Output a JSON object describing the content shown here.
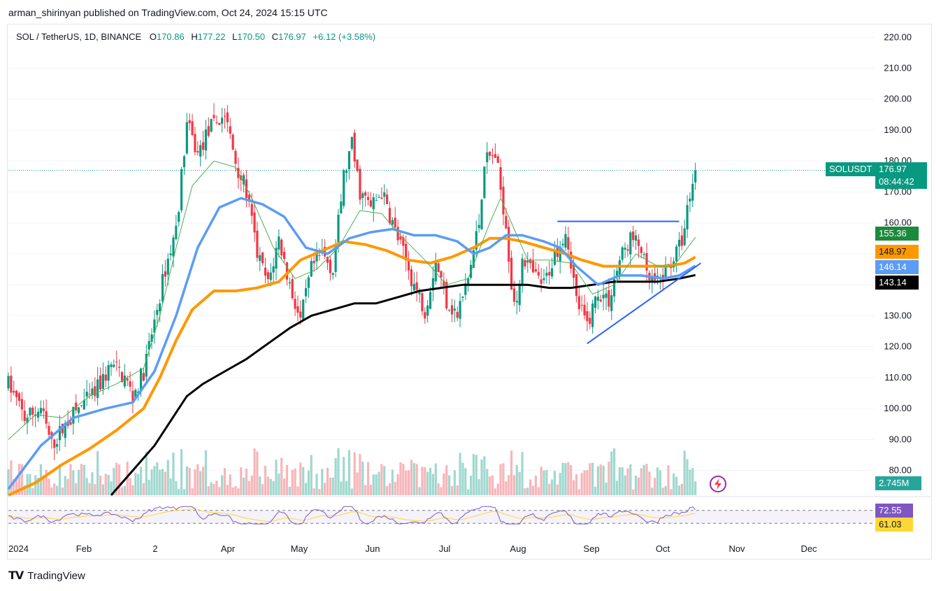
{
  "publisher": "arman_shirinyan published on TradingView.com, Oct 24, 2024 15:15 UTC",
  "legend": {
    "symbol": "SOL / TetherUS, 1D, BINANCE",
    "o_label": "O",
    "o": "170.86",
    "h_label": "H",
    "h": "177.22",
    "l_label": "L",
    "l": "170.50",
    "c_label": "C",
    "c": "176.97",
    "change": "+6.12 (+3.58%)"
  },
  "footer": {
    "brand": "TradingView"
  },
  "price_tags": {
    "ticker": "SOLUSDT",
    "last": "176.97",
    "countdown": "08:44:42",
    "ma_fast": "155.36",
    "ma_orange": "148.97",
    "ma_blue": "146.14",
    "ma_black": "143.14",
    "volume": "2.745M",
    "rsi": "72.55",
    "rsi_ma": "61.03"
  },
  "colors": {
    "up": "#089981",
    "down": "#f23645",
    "ma_fast": "#4caf50",
    "ma_orange": "#ff9800",
    "ma_blue": "#5b9cf6",
    "ma_black": "#000000",
    "trendline": "#2962ff",
    "rsi": "#7e57c2",
    "rsi_ma": "#fdd835",
    "last_price": "#089981"
  },
  "chart_data": {
    "type": "candlestick",
    "symbol": "SOL / TetherUS, 1D, BINANCE",
    "y_ticks": [
      "220.00",
      "210.00",
      "200.00",
      "190.00",
      "180.00",
      "170.00",
      "160.00",
      "150.00",
      "140.00",
      "130.00",
      "120.00",
      "110.00",
      "100.00",
      "90.00",
      "80.00"
    ],
    "x_ticks": [
      "2024",
      "Feb",
      "2",
      "Apr",
      "May",
      "Jun",
      "Jul",
      "Aug",
      "Sep",
      "Oct",
      "Nov",
      "Dec"
    ],
    "ylim": [
      72,
      223
    ],
    "price_path": [
      {
        "x": 0,
        "v": 108
      },
      {
        "x": 6,
        "v": 97
      },
      {
        "x": 12,
        "v": 100
      },
      {
        "x": 16,
        "v": 88
      },
      {
        "x": 22,
        "v": 96
      },
      {
        "x": 26,
        "v": 100
      },
      {
        "x": 32,
        "v": 105
      },
      {
        "x": 38,
        "v": 114
      },
      {
        "x": 43,
        "v": 110
      },
      {
        "x": 46,
        "v": 104
      },
      {
        "x": 50,
        "v": 112
      },
      {
        "x": 54,
        "v": 128
      },
      {
        "x": 58,
        "v": 145
      },
      {
        "x": 62,
        "v": 158
      },
      {
        "x": 66,
        "v": 192
      },
      {
        "x": 70,
        "v": 182
      },
      {
        "x": 74,
        "v": 190
      },
      {
        "x": 80,
        "v": 195
      },
      {
        "x": 84,
        "v": 180
      },
      {
        "x": 88,
        "v": 170
      },
      {
        "x": 92,
        "v": 150
      },
      {
        "x": 96,
        "v": 140
      },
      {
        "x": 100,
        "v": 155
      },
      {
        "x": 104,
        "v": 140
      },
      {
        "x": 108,
        "v": 128
      },
      {
        "x": 112,
        "v": 145
      },
      {
        "x": 116,
        "v": 150
      },
      {
        "x": 120,
        "v": 145
      },
      {
        "x": 124,
        "v": 175
      },
      {
        "x": 127,
        "v": 185
      },
      {
        "x": 130,
        "v": 170
      },
      {
        "x": 134,
        "v": 165
      },
      {
        "x": 138,
        "v": 170
      },
      {
        "x": 142,
        "v": 160
      },
      {
        "x": 146,
        "v": 150
      },
      {
        "x": 150,
        "v": 140
      },
      {
        "x": 154,
        "v": 132
      },
      {
        "x": 158,
        "v": 148
      },
      {
        "x": 162,
        "v": 135
      },
      {
        "x": 166,
        "v": 130
      },
      {
        "x": 170,
        "v": 142
      },
      {
        "x": 174,
        "v": 160
      },
      {
        "x": 176,
        "v": 180
      },
      {
        "x": 180,
        "v": 182
      },
      {
        "x": 184,
        "v": 160
      },
      {
        "x": 186,
        "v": 140
      },
      {
        "x": 188,
        "v": 132
      },
      {
        "x": 190,
        "v": 150
      },
      {
        "x": 194,
        "v": 143
      },
      {
        "x": 198,
        "v": 140
      },
      {
        "x": 202,
        "v": 150
      },
      {
        "x": 206,
        "v": 158
      },
      {
        "x": 208,
        "v": 148
      },
      {
        "x": 210,
        "v": 135
      },
      {
        "x": 214,
        "v": 127
      },
      {
        "x": 218,
        "v": 138
      },
      {
        "x": 222,
        "v": 135
      },
      {
        "x": 226,
        "v": 148
      },
      {
        "x": 230,
        "v": 155
      },
      {
        "x": 234,
        "v": 152
      },
      {
        "x": 236,
        "v": 142
      },
      {
        "x": 240,
        "v": 140
      },
      {
        "x": 244,
        "v": 146
      },
      {
        "x": 248,
        "v": 152
      },
      {
        "x": 250,
        "v": 158
      },
      {
        "x": 252,
        "v": 170
      },
      {
        "x": 254,
        "v": 177
      }
    ],
    "ma_fast": [
      [
        0,
        90
      ],
      [
        10,
        98
      ],
      [
        20,
        97
      ],
      [
        30,
        104
      ],
      [
        40,
        108
      ],
      [
        50,
        113
      ],
      [
        56,
        130
      ],
      [
        62,
        152
      ],
      [
        68,
        172
      ],
      [
        76,
        180
      ],
      [
        84,
        178
      ],
      [
        90,
        168
      ],
      [
        98,
        152
      ],
      [
        106,
        142
      ],
      [
        114,
        145
      ],
      [
        122,
        152
      ],
      [
        130,
        164
      ],
      [
        138,
        163
      ],
      [
        146,
        155
      ],
      [
        154,
        148
      ],
      [
        162,
        140
      ],
      [
        170,
        142
      ],
      [
        178,
        160
      ],
      [
        182,
        168
      ],
      [
        186,
        160
      ],
      [
        192,
        148
      ],
      [
        200,
        148
      ],
      [
        208,
        147
      ],
      [
        216,
        137
      ],
      [
        224,
        140
      ],
      [
        232,
        150
      ],
      [
        240,
        146
      ],
      [
        246,
        146
      ],
      [
        254,
        155.36
      ]
    ],
    "ma_blue": [
      [
        0,
        74
      ],
      [
        12,
        88
      ],
      [
        24,
        97
      ],
      [
        36,
        100
      ],
      [
        46,
        102
      ],
      [
        54,
        112
      ],
      [
        62,
        130
      ],
      [
        70,
        152
      ],
      [
        78,
        165
      ],
      [
        86,
        168
      ],
      [
        94,
        166
      ],
      [
        102,
        162
      ],
      [
        110,
        152
      ],
      [
        118,
        150
      ],
      [
        126,
        155
      ],
      [
        134,
        157
      ],
      [
        142,
        158
      ],
      [
        150,
        156
      ],
      [
        158,
        156
      ],
      [
        166,
        154
      ],
      [
        172,
        150
      ],
      [
        178,
        152
      ],
      [
        184,
        156
      ],
      [
        190,
        156
      ],
      [
        198,
        154
      ],
      [
        204,
        152
      ],
      [
        210,
        146
      ],
      [
        218,
        140
      ],
      [
        226,
        143
      ],
      [
        234,
        143
      ],
      [
        242,
        142
      ],
      [
        248,
        143
      ],
      [
        254,
        146.14
      ]
    ],
    "ma_orange": [
      [
        0,
        72
      ],
      [
        10,
        76
      ],
      [
        20,
        82
      ],
      [
        30,
        87
      ],
      [
        40,
        93
      ],
      [
        50,
        100
      ],
      [
        56,
        110
      ],
      [
        62,
        122
      ],
      [
        68,
        132
      ],
      [
        76,
        138
      ],
      [
        84,
        138
      ],
      [
        92,
        139
      ],
      [
        100,
        141
      ],
      [
        108,
        148
      ],
      [
        116,
        151
      ],
      [
        124,
        154
      ],
      [
        132,
        153
      ],
      [
        140,
        151
      ],
      [
        148,
        148
      ],
      [
        156,
        147
      ],
      [
        164,
        149
      ],
      [
        172,
        152
      ],
      [
        178,
        155
      ],
      [
        184,
        155
      ],
      [
        190,
        154
      ],
      [
        198,
        152
      ],
      [
        206,
        150
      ],
      [
        212,
        148
      ],
      [
        220,
        146
      ],
      [
        228,
        146
      ],
      [
        236,
        146
      ],
      [
        244,
        146
      ],
      [
        250,
        147
      ],
      [
        254,
        148.97
      ]
    ],
    "ma_black": [
      [
        38,
        72
      ],
      [
        46,
        80
      ],
      [
        54,
        88
      ],
      [
        60,
        96
      ],
      [
        66,
        104
      ],
      [
        72,
        108
      ],
      [
        80,
        112
      ],
      [
        88,
        116
      ],
      [
        96,
        121
      ],
      [
        104,
        126
      ],
      [
        112,
        130
      ],
      [
        120,
        132
      ],
      [
        128,
        134
      ],
      [
        136,
        134
      ],
      [
        144,
        136
      ],
      [
        152,
        138
      ],
      [
        160,
        139
      ],
      [
        168,
        140
      ],
      [
        176,
        140
      ],
      [
        184,
        140
      ],
      [
        192,
        140
      ],
      [
        200,
        139
      ],
      [
        208,
        139
      ],
      [
        216,
        140
      ],
      [
        224,
        141
      ],
      [
        232,
        141
      ],
      [
        240,
        141
      ],
      [
        248,
        142
      ],
      [
        254,
        143.14
      ]
    ],
    "trendlines": [
      {
        "from": [
          203,
          160.5
        ],
        "to": [
          248,
          160.5
        ]
      },
      {
        "from": [
          214,
          121
        ],
        "to": [
          256,
          147
        ]
      }
    ],
    "last_price": 176.97,
    "volume_last": "2.745M",
    "rsi": {
      "value": 72.55,
      "ma": 61.03,
      "upper": 70,
      "lower": 30
    }
  }
}
